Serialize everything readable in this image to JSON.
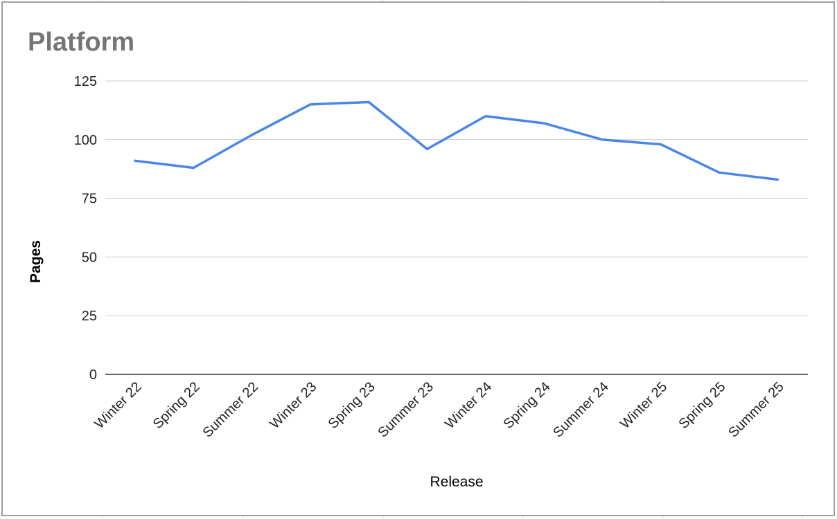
{
  "colors": {
    "line": "#4A86E8",
    "title": "#757575",
    "grid": "#CCCCCC",
    "axis": "#333333",
    "frame": "#9E9E9E",
    "sheet_grid": "#E0E0E0"
  },
  "chart_data": {
    "type": "line",
    "title": "Platform",
    "xlabel": "Release",
    "ylabel": "Pages",
    "categories": [
      "Winter 22",
      "Spring 22",
      "Summer 22",
      "Winter 23",
      "Spring 23",
      "Summer 23",
      "Winter 24",
      "Spring 24",
      "Summer 24",
      "Winter 25",
      "Spring 25",
      "Summer 25"
    ],
    "series": [
      {
        "values": [
          91,
          88,
          102,
          115,
          116,
          96,
          110,
          107,
          100,
          98,
          86,
          83
        ]
      }
    ],
    "ylim": [
      0,
      125
    ],
    "yticks": [
      0,
      25,
      50,
      75,
      100,
      125
    ],
    "grid": true,
    "legend": "none"
  }
}
